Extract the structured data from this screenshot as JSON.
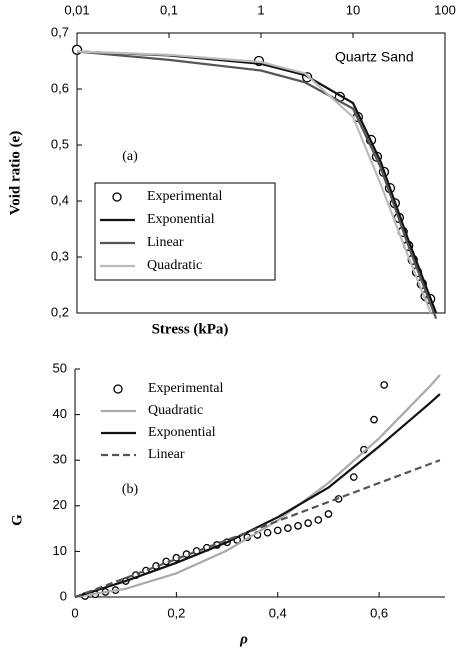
{
  "chart_data": [
    {
      "type": "line",
      "xscale": "log",
      "title_annotation": "Quartz Sand",
      "panel_label": "(a)",
      "x_label": "Stress (kPa)",
      "y_label": "Void ratio (e)",
      "xlim": [
        0.01,
        100
      ],
      "ylim": [
        0.2,
        0.7
      ],
      "xticks": [
        {
          "value": 0.01,
          "label": "0,01"
        },
        {
          "value": 0.1,
          "label": "0,1"
        },
        1,
        10,
        100
      ],
      "yticks": [
        {
          "value": 0.2,
          "label": "0,2"
        },
        {
          "value": 0.3,
          "label": "0,3"
        },
        {
          "value": 0.4,
          "label": "0,4"
        },
        {
          "value": 0.5,
          "label": "0,5"
        },
        {
          "value": 0.6,
          "label": "0,6"
        },
        {
          "value": 0.7,
          "label": "0,7"
        }
      ],
      "legend": "lower left",
      "frame": true,
      "x_axis_position": "top",
      "series": [
        {
          "name": "Experimental",
          "style": "markers",
          "color": "#000000",
          "x": [
            0.01,
            0.95,
            3.17,
            7.2,
            11.3,
            15.7,
            18.2,
            21.7,
            25.2,
            28.5,
            31.5,
            34.7,
            39.8,
            44.6,
            49.6,
            56,
            61.5,
            69
          ],
          "values": [
            0.67,
            0.65,
            0.621,
            0.586,
            0.55,
            0.509,
            0.479,
            0.452,
            0.423,
            0.396,
            0.37,
            0.345,
            0.32,
            0.295,
            0.273,
            0.252,
            0.23,
            0.225
          ]
        },
        {
          "name": "Exponential",
          "style": "line",
          "color": "#111111",
          "x": [
            0.01,
            0.1,
            1,
            3,
            10,
            20,
            40,
            80
          ],
          "values": [
            0.667,
            0.66,
            0.645,
            0.625,
            0.575,
            0.47,
            0.33,
            0.2
          ]
        },
        {
          "name": "Linear",
          "style": "line",
          "color": "#555555",
          "x": [
            0.01,
            0.1,
            1,
            3,
            10,
            20,
            40,
            80
          ],
          "values": [
            0.667,
            0.652,
            0.633,
            0.612,
            0.565,
            0.46,
            0.32,
            0.19
          ]
        },
        {
          "name": "Quadratic",
          "style": "line",
          "color": "#bbbbbb",
          "x": [
            0.01,
            0.1,
            1,
            3,
            10,
            20,
            40,
            70
          ],
          "values": [
            0.667,
            0.661,
            0.648,
            0.628,
            0.55,
            0.43,
            0.3,
            0.2
          ]
        }
      ]
    },
    {
      "type": "line",
      "xscale": "linear",
      "panel_label": "(b)",
      "x_label": "ρ",
      "y_label": "G",
      "xlim": [
        0,
        0.73
      ],
      "ylim": [
        0,
        50
      ],
      "xticks": [
        0,
        {
          "value": 0.2,
          "label": "0,2"
        },
        {
          "value": 0.4,
          "label": "0,4"
        },
        {
          "value": 0.6,
          "label": "0,6"
        }
      ],
      "yticks": [
        0,
        10,
        20,
        30,
        40,
        50
      ],
      "legend": "upper left",
      "frame": false,
      "x_axis_position": "bottom",
      "series": [
        {
          "name": "Experimental",
          "style": "markers",
          "color": "#000000",
          "x": [
            0.02,
            0.04,
            0.06,
            0.08,
            0.1,
            0.12,
            0.14,
            0.16,
            0.18,
            0.2,
            0.22,
            0.24,
            0.26,
            0.28,
            0.3,
            0.32,
            0.34,
            0.36,
            0.38,
            0.4,
            0.42,
            0.44,
            0.46,
            0.48,
            0.5,
            0.52,
            0.55,
            0.57,
            0.59,
            0.61
          ],
          "values": [
            0.2,
            0.6,
            1.1,
            1.5,
            3.5,
            4.8,
            5.8,
            6.8,
            7.8,
            8.6,
            9.4,
            10.1,
            10.8,
            11.4,
            12,
            12.5,
            13.1,
            13.6,
            14.1,
            14.6,
            15.1,
            15.6,
            16.2,
            16.9,
            18.2,
            21.5,
            26.3,
            32.3,
            38.9,
            46.5
          ]
        },
        {
          "name": "Quadratic",
          "style": "line",
          "color": "#aaaaaa",
          "x": [
            0,
            0.1,
            0.2,
            0.3,
            0.4,
            0.5,
            0.6,
            0.7,
            0.72
          ],
          "values": [
            0,
            1.8,
            5.2,
            10.2,
            16.8,
            25,
            34.8,
            46.2,
            48.7
          ]
        },
        {
          "name": "Exponential",
          "style": "line",
          "color": "#111111",
          "x": [
            0,
            0.1,
            0.2,
            0.3,
            0.4,
            0.5,
            0.6,
            0.7,
            0.72
          ],
          "values": [
            0,
            3.5,
            7.5,
            12,
            17.5,
            24,
            33,
            42.5,
            44.5
          ]
        },
        {
          "name": "Linear",
          "style": "dashed",
          "color": "#555555",
          "x": [
            0,
            0.72
          ],
          "values": [
            0,
            30
          ]
        }
      ]
    }
  ]
}
